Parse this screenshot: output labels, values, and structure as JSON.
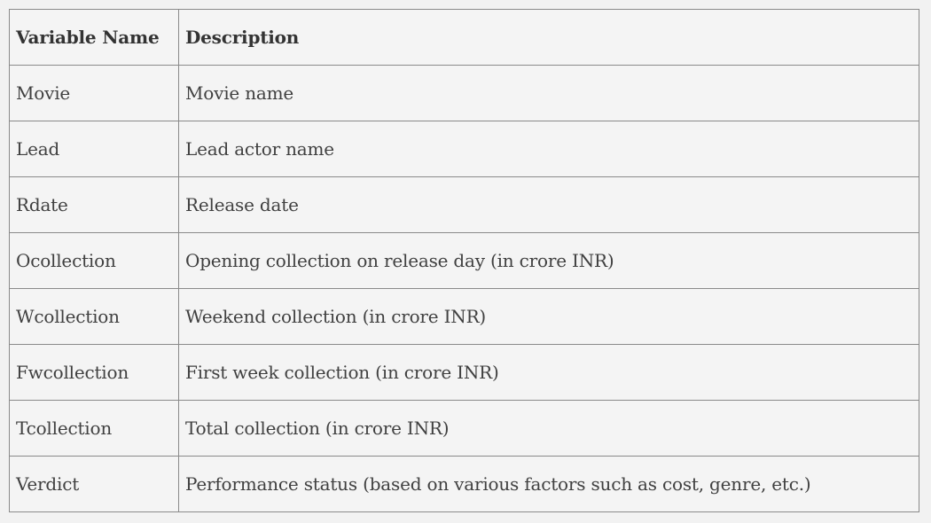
{
  "table": {
    "headers": [
      "Variable Name",
      "Description"
    ],
    "rows": [
      [
        "Movie",
        "Movie name"
      ],
      [
        "Lead",
        "Lead actor name"
      ],
      [
        "Rdate",
        "Release date"
      ],
      [
        "Ocollection",
        "Opening collection on release day (in crore INR)"
      ],
      [
        "Wcollection",
        "Weekend collection (in crore INR)"
      ],
      [
        "Fwcollection",
        "First week collection (in crore INR)"
      ],
      [
        "Tcollection",
        "Total collection (in crore INR)"
      ],
      [
        "Verdict",
        "Performance status (based on various factors such as cost, genre, etc.)"
      ]
    ]
  }
}
